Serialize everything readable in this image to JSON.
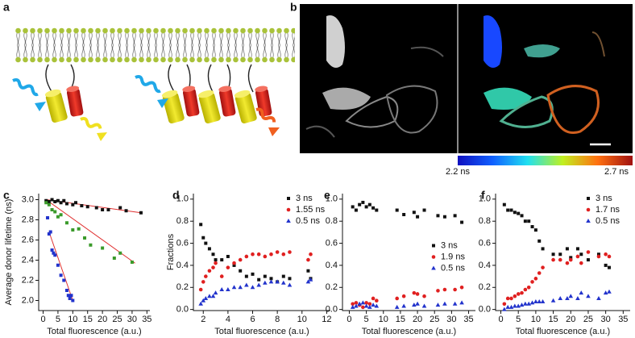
{
  "panel_a": {
    "label": "a"
  },
  "panel_b": {
    "label": "b",
    "colorbar_min_label": "2.2 ns",
    "colorbar_max_label": "2.7 ns"
  },
  "chart_data": [
    {
      "type": "scatter",
      "panel_label": "c",
      "y_label": "Average donor lifetime (ns)",
      "x_label": "Total fluorescence (a.u.)",
      "xlim": [
        -1.5,
        36
      ],
      "xticks": [
        0,
        5,
        10,
        15,
        20,
        25,
        30,
        35
      ],
      "ylim": [
        1.9,
        3.06
      ],
      "yticks": [
        {
          "value": 2,
          "label": "2.0"
        },
        2.2,
        2.4,
        2.6,
        2.8,
        {
          "value": 3,
          "label": "3.0"
        }
      ],
      "series": [
        {
          "color": "#111111",
          "marker": "square",
          "x": [
            1,
            2,
            3,
            4,
            5,
            6,
            7,
            8,
            10,
            11,
            13,
            15,
            18,
            20,
            22,
            26,
            28,
            33
          ],
          "values": [
            2.99,
            2.98,
            3.0,
            2.98,
            2.99,
            2.97,
            2.99,
            2.96,
            2.95,
            2.97,
            2.94,
            2.93,
            2.92,
            2.9,
            2.9,
            2.92,
            2.89,
            2.87
          ]
        },
        {
          "color": "#3a9a2a",
          "marker": "square",
          "x": [
            1,
            2,
            3,
            4,
            5,
            6,
            8,
            10,
            12,
            14,
            16,
            20,
            24,
            26,
            30
          ],
          "values": [
            2.97,
            2.95,
            2.9,
            2.88,
            2.83,
            2.85,
            2.77,
            2.7,
            2.71,
            2.62,
            2.55,
            2.52,
            2.42,
            2.47,
            2.38
          ]
        },
        {
          "color": "#2233cc",
          "marker": "square",
          "x": [
            1.5,
            2,
            2.5,
            3,
            3.5,
            4,
            5,
            6,
            7,
            8,
            8.5,
            9,
            9.5,
            10
          ],
          "values": [
            2.82,
            2.66,
            2.68,
            2.5,
            2.47,
            2.45,
            2.35,
            2.25,
            2.2,
            2.1,
            2.05,
            2.02,
            2.05,
            2.0
          ]
        }
      ],
      "fit_lines": [
        {
          "color": "#e03030",
          "x": [
            1,
            33
          ],
          "values": [
            3.0,
            2.87
          ]
        },
        {
          "color": "#e03030",
          "x": [
            1,
            31
          ],
          "values": [
            3.0,
            2.37
          ]
        },
        {
          "color": "#e03030",
          "x": [
            2,
            10
          ],
          "values": [
            2.68,
            2.0
          ]
        }
      ]
    },
    {
      "type": "scatter",
      "panel_label": "d",
      "y_label": "Fractions",
      "x_label": "Total fluorescence (a.u.)",
      "legend": "upper right",
      "xlim": [
        1.2,
        12.3
      ],
      "xticks": [
        2,
        4,
        6,
        8,
        10,
        12
      ],
      "ylim": [
        -0.01,
        1.05
      ],
      "yticks": [
        {
          "value": 0,
          "label": "0.0"
        },
        0.2,
        0.4,
        0.6,
        0.8,
        {
          "value": 1,
          "label": "1.0"
        }
      ],
      "series": [
        {
          "name": "3 ns",
          "color": "#111111",
          "marker": "square",
          "x": [
            1.8,
            2.0,
            2.2,
            2.5,
            2.8,
            3.0,
            3.5,
            4.0,
            4.5,
            5.0,
            5.5,
            6.0,
            6.5,
            7.0,
            7.5,
            8.0,
            8.5,
            9.0,
            10.5,
            10.7
          ],
          "values": [
            0.77,
            0.65,
            0.6,
            0.55,
            0.5,
            0.45,
            0.45,
            0.48,
            0.4,
            0.35,
            0.3,
            0.32,
            0.27,
            0.3,
            0.28,
            0.25,
            0.3,
            0.28,
            0.35,
            0.28
          ]
        },
        {
          "name": "1.55 ns",
          "color": "#e02020",
          "marker": "circle",
          "x": [
            1.8,
            2.0,
            2.2,
            2.5,
            2.8,
            3.0,
            3.5,
            4.0,
            4.5,
            5.0,
            5.5,
            6.0,
            6.5,
            7.0,
            7.5,
            8.0,
            8.5,
            9.0,
            10.5,
            10.7
          ],
          "values": [
            0.18,
            0.25,
            0.3,
            0.35,
            0.38,
            0.42,
            0.3,
            0.38,
            0.42,
            0.45,
            0.48,
            0.5,
            0.5,
            0.48,
            0.5,
            0.52,
            0.5,
            0.52,
            0.45,
            0.5
          ]
        },
        {
          "name": "0.5 ns",
          "color": "#2233cc",
          "marker": "triangle",
          "x": [
            1.8,
            2.0,
            2.2,
            2.5,
            2.8,
            3.0,
            3.5,
            4.0,
            4.5,
            5.0,
            5.5,
            6.0,
            6.5,
            7.0,
            7.5,
            8.0,
            8.5,
            9.0,
            10.5,
            10.7
          ],
          "values": [
            0.05,
            0.08,
            0.1,
            0.12,
            0.12,
            0.15,
            0.18,
            0.18,
            0.2,
            0.2,
            0.22,
            0.2,
            0.22,
            0.24,
            0.25,
            0.25,
            0.24,
            0.22,
            0.25,
            0.27
          ]
        }
      ]
    },
    {
      "type": "scatter",
      "panel_label": "e",
      "x_label": "Total fluorescence (a.u.)",
      "legend": "center right",
      "xlim": [
        -2,
        37
      ],
      "xticks": [
        0,
        5,
        10,
        15,
        20,
        25,
        30,
        35
      ],
      "ylim": [
        -0.01,
        1.05
      ],
      "yticks": [
        {
          "value": 0,
          "label": "0.0"
        },
        0.2,
        0.4,
        0.6,
        0.8,
        {
          "value": 1,
          "label": "1.0"
        }
      ],
      "series": [
        {
          "name": "3 ns",
          "color": "#111111",
          "marker": "square",
          "x": [
            1,
            2,
            3,
            4,
            5,
            6,
            7,
            8,
            14,
            16,
            19,
            20,
            22,
            26,
            28,
            31,
            33
          ],
          "values": [
            0.93,
            0.9,
            0.95,
            0.97,
            0.93,
            0.95,
            0.92,
            0.9,
            0.9,
            0.86,
            0.88,
            0.84,
            0.9,
            0.85,
            0.84,
            0.85,
            0.79
          ]
        },
        {
          "name": "1.9 ns",
          "color": "#e02020",
          "marker": "circle",
          "x": [
            1,
            2,
            3,
            4,
            5,
            6,
            7,
            8,
            14,
            16,
            19,
            20,
            22,
            26,
            28,
            31,
            33
          ],
          "values": [
            0.05,
            0.06,
            0.04,
            0.02,
            0.06,
            0.05,
            0.1,
            0.08,
            0.1,
            0.12,
            0.15,
            0.14,
            0.12,
            0.17,
            0.18,
            0.18,
            0.2
          ]
        },
        {
          "name": "0.5 ns",
          "color": "#2233cc",
          "marker": "triangle",
          "x": [
            1,
            2,
            3,
            4,
            5,
            6,
            7,
            8,
            14,
            16,
            19,
            20,
            22,
            26,
            28,
            31,
            33
          ],
          "values": [
            0.02,
            0.03,
            0.05,
            0.06,
            0.03,
            0.02,
            0.04,
            0.03,
            0.02,
            0.03,
            0.04,
            0.05,
            0.03,
            0.04,
            0.05,
            0.05,
            0.06
          ]
        }
      ]
    },
    {
      "type": "scatter",
      "panel_label": "f",
      "x_label": "Total fluorescence (a.u.)",
      "legend": "upper right",
      "xlim": [
        -1.5,
        37
      ],
      "xticks": [
        0,
        5,
        10,
        15,
        20,
        25,
        30,
        35
      ],
      "ylim": [
        -0.01,
        1.05
      ],
      "yticks": [
        {
          "value": 0,
          "label": "0.0"
        },
        0.2,
        0.4,
        0.6,
        0.8,
        {
          "value": 1,
          "label": "1.0"
        }
      ],
      "series": [
        {
          "name": "3 ns",
          "color": "#111111",
          "marker": "square",
          "x": [
            1,
            2,
            3,
            4,
            5,
            6,
            7,
            8,
            9,
            10,
            11,
            12,
            15,
            17,
            19,
            20,
            22,
            23,
            25,
            28,
            30,
            31
          ],
          "values": [
            0.95,
            0.9,
            0.9,
            0.88,
            0.87,
            0.85,
            0.8,
            0.8,
            0.75,
            0.72,
            0.62,
            0.55,
            0.5,
            0.5,
            0.55,
            0.47,
            0.55,
            0.5,
            0.45,
            0.5,
            0.4,
            0.38
          ]
        },
        {
          "name": "1.7 ns",
          "color": "#e02020",
          "marker": "circle",
          "x": [
            1,
            2,
            3,
            4,
            5,
            6,
            7,
            8,
            9,
            10,
            11,
            12,
            15,
            17,
            19,
            20,
            22,
            23,
            25,
            28,
            30,
            31
          ],
          "values": [
            0.05,
            0.1,
            0.1,
            0.12,
            0.14,
            0.15,
            0.18,
            0.2,
            0.25,
            0.28,
            0.33,
            0.38,
            0.45,
            0.45,
            0.42,
            0.45,
            0.48,
            0.42,
            0.52,
            0.48,
            0.5,
            0.48
          ]
        },
        {
          "name": "0.5 ns",
          "color": "#2233cc",
          "marker": "triangle",
          "x": [
            1,
            2,
            3,
            4,
            5,
            6,
            7,
            8,
            9,
            10,
            11,
            12,
            15,
            17,
            19,
            20,
            22,
            23,
            25,
            28,
            30,
            31
          ],
          "values": [
            0.0,
            0.02,
            0.02,
            0.03,
            0.03,
            0.04,
            0.05,
            0.05,
            0.06,
            0.07,
            0.07,
            0.07,
            0.08,
            0.1,
            0.1,
            0.12,
            0.1,
            0.15,
            0.12,
            0.1,
            0.15,
            0.16
          ]
        }
      ]
    }
  ]
}
